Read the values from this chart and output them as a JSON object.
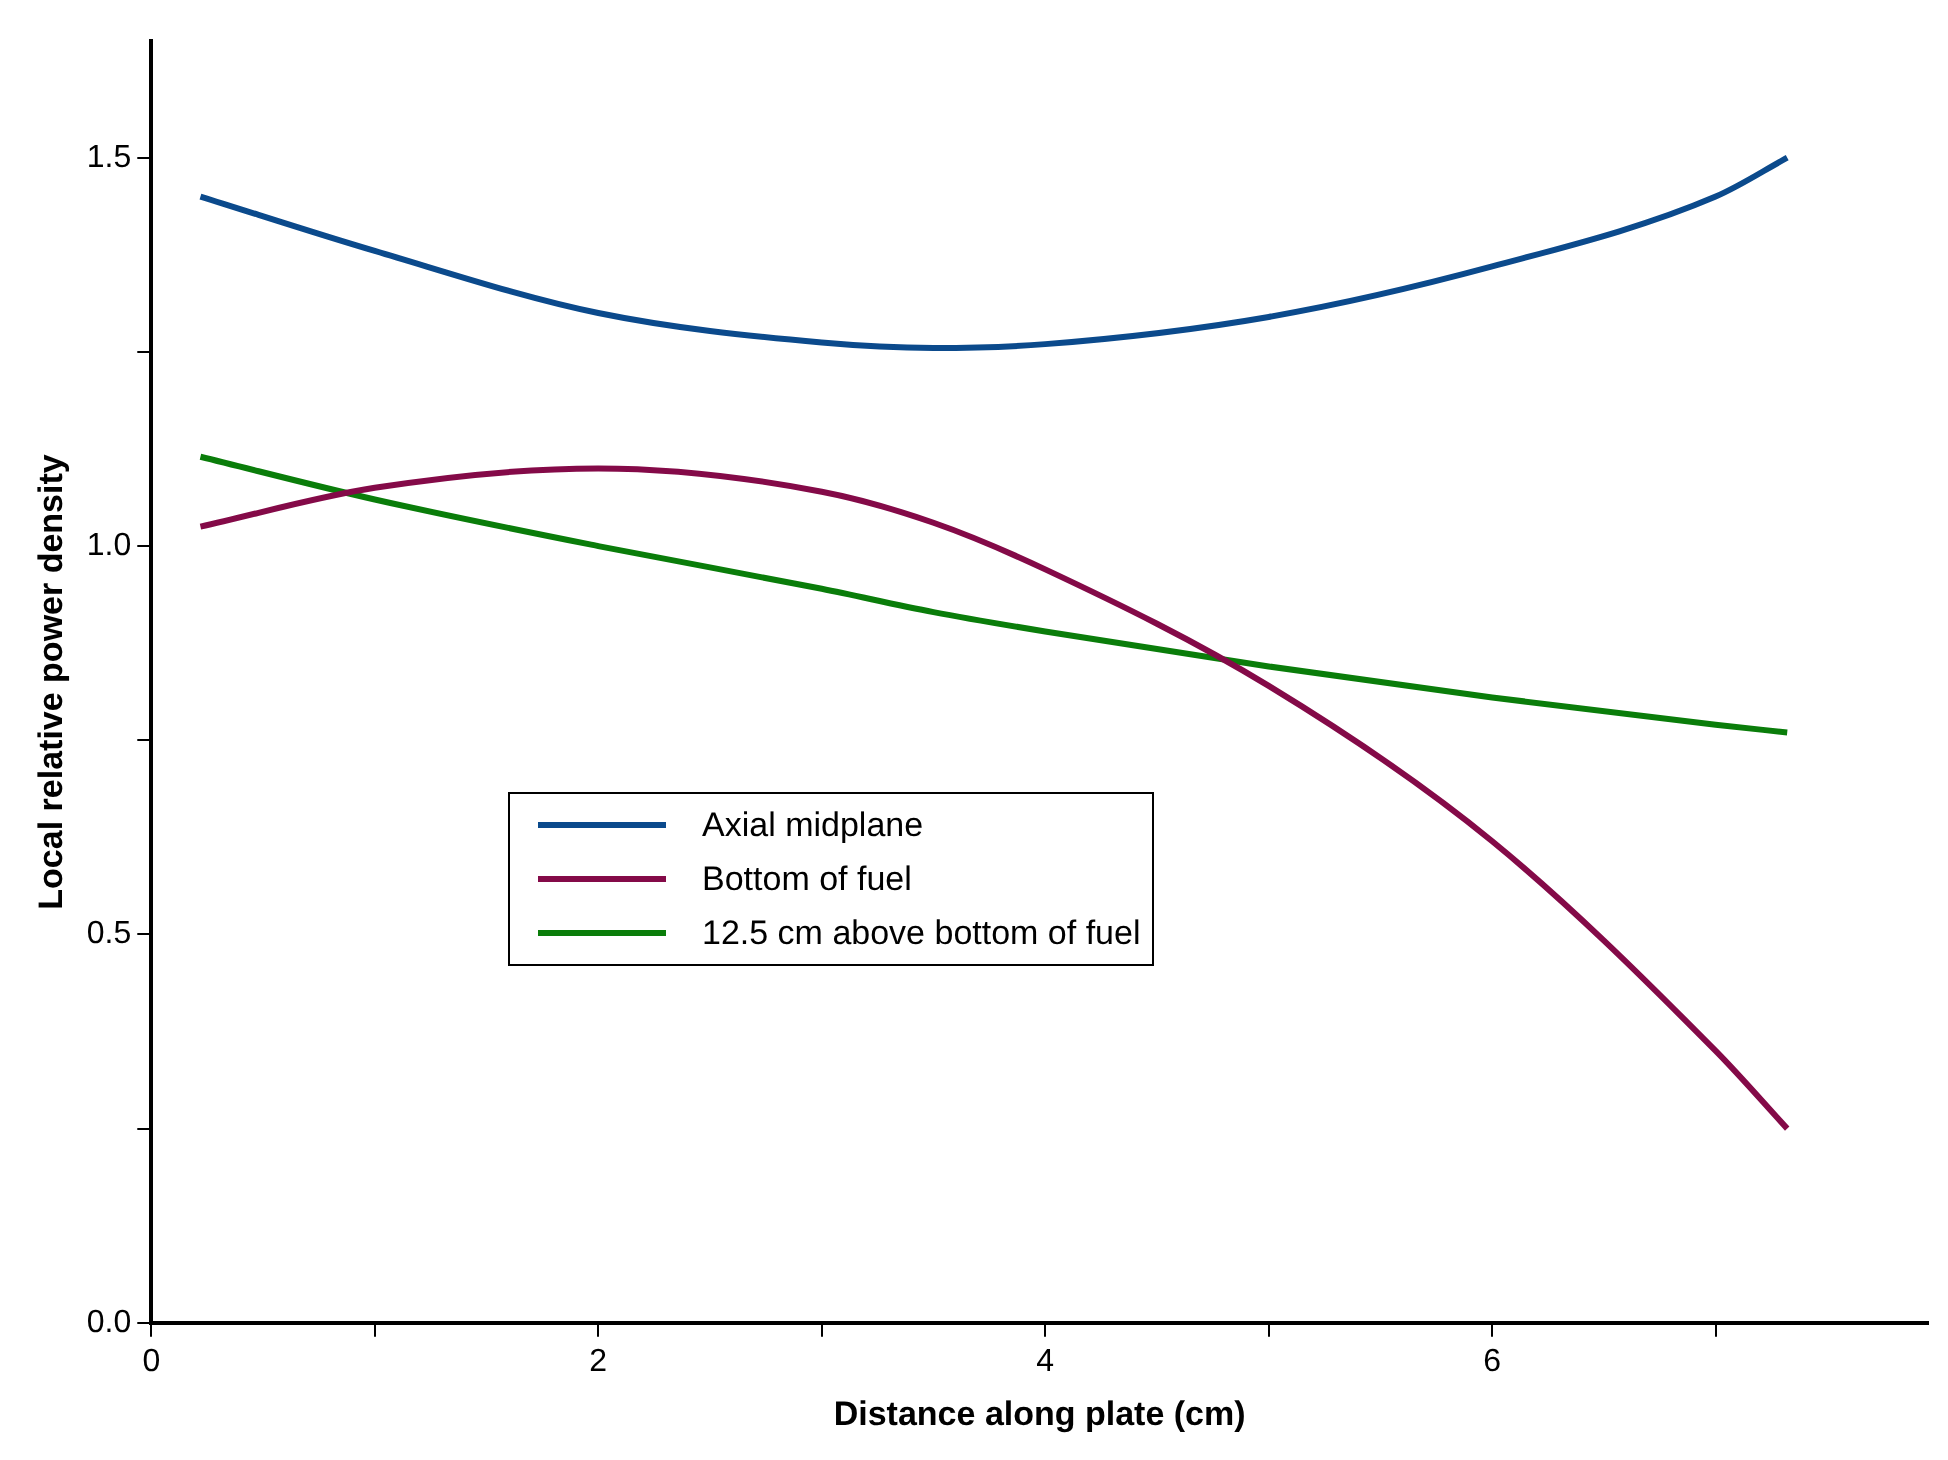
{
  "chart_data": {
    "type": "line",
    "xlabel": "Distance along plate (cm)",
    "ylabel": "Local relative power density",
    "x": [
      0.22,
      1,
      2,
      3,
      3.5,
      4,
      5,
      6,
      7,
      7.32
    ],
    "series": [
      {
        "name": "Axial midplane",
        "color": "#0b4a8c",
        "values": [
          1.45,
          1.38,
          1.3,
          1.262,
          1.255,
          1.26,
          1.295,
          1.36,
          1.45,
          1.5
        ]
      },
      {
        "name": "Bottom of fuel",
        "color": "#840a48",
        "values": [
          1.025,
          1.075,
          1.1,
          1.07,
          1.03,
          0.97,
          0.82,
          0.62,
          0.35,
          0.25
        ]
      },
      {
        "name": "12.5 cm above bottom of fuel",
        "color": "#0a7d0a",
        "values": [
          1.115,
          1.06,
          1.0,
          0.945,
          0.915,
          0.89,
          0.845,
          0.805,
          0.77,
          0.76
        ]
      }
    ],
    "xlim": [
      0,
      7.95
    ],
    "xticks": [
      0,
      {
        "value": 1,
        "label": null
      },
      2,
      {
        "value": 3,
        "label": null
      },
      4,
      {
        "value": 5,
        "label": null
      },
      6,
      {
        "value": 7,
        "label": null
      }
    ],
    "ylim": [
      0,
      1.65
    ],
    "yticks": [
      {
        "value": 0,
        "label": "0.0"
      },
      {
        "value": 0.25,
        "label": null
      },
      {
        "value": 0.5,
        "label": "0.5"
      },
      {
        "value": 0.75,
        "label": null
      },
      {
        "value": 1,
        "label": "1.0"
      },
      {
        "value": 1.25,
        "label": null
      },
      {
        "value": 1.5,
        "label": "1.5"
      }
    ],
    "grid": false,
    "legend": "center left",
    "marker": "none",
    "line_style": "solid"
  }
}
